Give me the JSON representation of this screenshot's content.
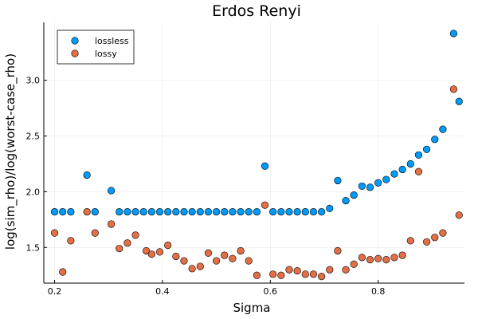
{
  "chart_data": {
    "type": "scatter",
    "title": "Erdos Renyi",
    "xlabel": "Sigma",
    "ylabel": "log(sim_rho)/log(worst-case_rho)",
    "xlim": [
      0.18,
      0.96
    ],
    "ylim": [
      1.18,
      3.52
    ],
    "xticks": [
      0.2,
      0.4,
      0.6,
      0.8
    ],
    "xtick_labels": [
      "0.2",
      "0.4",
      "0.6",
      "0.8"
    ],
    "yticks": [
      1.5,
      2.0,
      2.5,
      3.0
    ],
    "ytick_labels": [
      "1.5",
      "2.0",
      "2.5",
      "3.0"
    ],
    "grid": true,
    "legend_position": "top-left",
    "series": [
      {
        "name": "lossless",
        "color": "#009AF9",
        "x": [
          0.2,
          0.215,
          0.23,
          0.26,
          0.275,
          0.305,
          0.32,
          0.335,
          0.35,
          0.365,
          0.38,
          0.395,
          0.41,
          0.425,
          0.44,
          0.455,
          0.47,
          0.485,
          0.5,
          0.515,
          0.53,
          0.545,
          0.56,
          0.575,
          0.59,
          0.605,
          0.62,
          0.635,
          0.65,
          0.665,
          0.68,
          0.695,
          0.71,
          0.725,
          0.74,
          0.755,
          0.77,
          0.785,
          0.8,
          0.815,
          0.83,
          0.845,
          0.86,
          0.875,
          0.89,
          0.905,
          0.92,
          0.94,
          0.95
        ],
        "y": [
          1.82,
          1.82,
          1.82,
          2.15,
          1.82,
          2.01,
          1.82,
          1.82,
          1.82,
          1.82,
          1.82,
          1.82,
          1.82,
          1.82,
          1.82,
          1.82,
          1.82,
          1.82,
          1.82,
          1.82,
          1.82,
          1.82,
          1.82,
          1.82,
          2.23,
          1.82,
          1.82,
          1.82,
          1.82,
          1.82,
          1.82,
          1.82,
          1.85,
          2.1,
          1.92,
          1.97,
          2.05,
          2.04,
          2.08,
          2.11,
          2.16,
          2.2,
          2.25,
          2.33,
          2.38,
          2.47,
          2.56,
          3.42,
          2.81
        ]
      },
      {
        "name": "lossy",
        "color": "#E26F46",
        "x": [
          0.2,
          0.215,
          0.23,
          0.26,
          0.275,
          0.305,
          0.32,
          0.335,
          0.35,
          0.37,
          0.38,
          0.395,
          0.41,
          0.425,
          0.44,
          0.455,
          0.47,
          0.485,
          0.5,
          0.515,
          0.53,
          0.545,
          0.56,
          0.575,
          0.59,
          0.605,
          0.62,
          0.635,
          0.65,
          0.665,
          0.68,
          0.695,
          0.71,
          0.725,
          0.74,
          0.755,
          0.77,
          0.785,
          0.8,
          0.815,
          0.83,
          0.845,
          0.86,
          0.875,
          0.89,
          0.905,
          0.92,
          0.94,
          0.95
        ],
        "y": [
          1.63,
          1.28,
          1.56,
          1.82,
          1.63,
          1.71,
          1.49,
          1.54,
          1.61,
          1.47,
          1.44,
          1.46,
          1.52,
          1.42,
          1.38,
          1.31,
          1.33,
          1.45,
          1.38,
          1.43,
          1.4,
          1.47,
          1.38,
          1.25,
          1.88,
          1.26,
          1.25,
          1.3,
          1.29,
          1.26,
          1.26,
          1.24,
          1.3,
          1.47,
          1.3,
          1.35,
          1.41,
          1.39,
          1.4,
          1.39,
          1.41,
          1.43,
          1.56,
          2.18,
          1.55,
          1.59,
          1.63,
          2.92,
          1.79
        ]
      }
    ]
  }
}
